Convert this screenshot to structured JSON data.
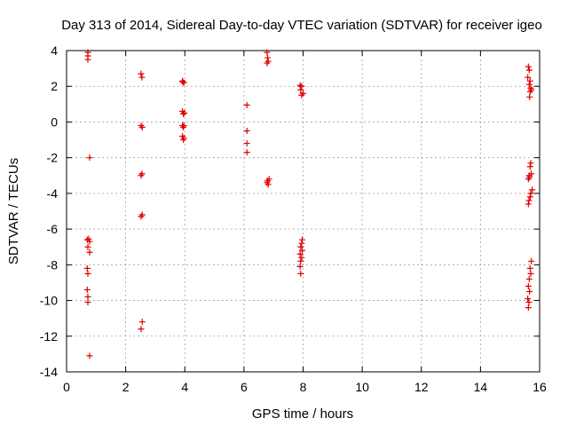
{
  "chart_data": {
    "type": "scatter",
    "title": "Day 313 of 2014, Sidereal Day-to-day VTEC variation (SDTVAR) for receiver igeo",
    "xlabel": "GPS time / hours",
    "ylabel": "SDTVAR / TECUs",
    "xlim": [
      0,
      16
    ],
    "ylim": [
      -14,
      4
    ],
    "xticks": [
      "0",
      "2",
      "4",
      "6",
      "8",
      "10",
      "12",
      "14",
      "16"
    ],
    "yticks": [
      "-14",
      "-12",
      "-10",
      "-8",
      "-6",
      "-4",
      "-2",
      "0",
      "2",
      "4"
    ],
    "grid": true,
    "marker": "plus",
    "color": "#e00000",
    "series": [
      {
        "name": "SDTVAR",
        "points": [
          [
            0.72,
            3.9
          ],
          [
            0.72,
            3.7
          ],
          [
            0.72,
            3.5
          ],
          [
            0.78,
            -2.0
          ],
          [
            0.7,
            -6.6
          ],
          [
            0.75,
            -6.55
          ],
          [
            0.78,
            -6.7
          ],
          [
            0.72,
            -7.0
          ],
          [
            0.78,
            -7.3
          ],
          [
            0.7,
            -8.2
          ],
          [
            0.72,
            -8.5
          ],
          [
            0.7,
            -9.4
          ],
          [
            0.72,
            -9.8
          ],
          [
            0.72,
            -10.1
          ],
          [
            0.78,
            -13.1
          ],
          [
            2.52,
            2.7
          ],
          [
            2.55,
            2.5
          ],
          [
            2.52,
            -0.2
          ],
          [
            2.56,
            -0.3
          ],
          [
            2.55,
            -2.9
          ],
          [
            2.52,
            -3.0
          ],
          [
            2.56,
            -5.2
          ],
          [
            2.52,
            -5.3
          ],
          [
            2.56,
            -11.2
          ],
          [
            2.52,
            -11.6
          ],
          [
            3.92,
            2.3
          ],
          [
            3.97,
            2.2
          ],
          [
            3.93,
            2.25
          ],
          [
            3.92,
            0.6
          ],
          [
            3.98,
            0.5
          ],
          [
            3.95,
            0.45
          ],
          [
            3.92,
            -0.2
          ],
          [
            3.97,
            -0.2
          ],
          [
            3.95,
            -0.3
          ],
          [
            3.92,
            -0.8
          ],
          [
            3.97,
            -0.9
          ],
          [
            3.95,
            -1.0
          ],
          [
            6.1,
            0.95
          ],
          [
            6.1,
            -0.5
          ],
          [
            6.1,
            -1.2
          ],
          [
            6.1,
            -1.7
          ],
          [
            6.78,
            3.9
          ],
          [
            6.8,
            3.6
          ],
          [
            6.82,
            3.4
          ],
          [
            6.78,
            3.3
          ],
          [
            6.85,
            -3.2
          ],
          [
            6.8,
            -3.3
          ],
          [
            6.78,
            -3.4
          ],
          [
            6.82,
            -3.5
          ],
          [
            7.9,
            2.05
          ],
          [
            7.95,
            2.0
          ],
          [
            7.92,
            1.8
          ],
          [
            8.0,
            1.6
          ],
          [
            7.95,
            1.5
          ],
          [
            7.97,
            -6.6
          ],
          [
            7.95,
            -6.8
          ],
          [
            7.92,
            -7.0
          ],
          [
            7.97,
            -7.2
          ],
          [
            7.9,
            -7.4
          ],
          [
            7.95,
            -7.6
          ],
          [
            7.92,
            -7.8
          ],
          [
            7.9,
            -8.1
          ],
          [
            7.92,
            -8.5
          ],
          [
            15.62,
            3.1
          ],
          [
            15.65,
            2.9
          ],
          [
            15.6,
            2.5
          ],
          [
            15.68,
            2.3
          ],
          [
            15.65,
            2.1
          ],
          [
            15.7,
            1.9
          ],
          [
            15.72,
            1.8
          ],
          [
            15.68,
            1.7
          ],
          [
            15.66,
            1.4
          ],
          [
            15.7,
            -2.3
          ],
          [
            15.68,
            -2.5
          ],
          [
            15.72,
            -2.9
          ],
          [
            15.65,
            -3.0
          ],
          [
            15.62,
            -3.2
          ],
          [
            15.66,
            -3.1
          ],
          [
            15.75,
            -3.8
          ],
          [
            15.7,
            -4.0
          ],
          [
            15.68,
            -4.2
          ],
          [
            15.64,
            -4.4
          ],
          [
            15.62,
            -4.6
          ],
          [
            15.72,
            -7.8
          ],
          [
            15.68,
            -8.2
          ],
          [
            15.7,
            -8.5
          ],
          [
            15.65,
            -8.8
          ],
          [
            15.62,
            -9.2
          ],
          [
            15.66,
            -9.5
          ],
          [
            15.6,
            -9.9
          ],
          [
            15.64,
            -10.1
          ],
          [
            15.62,
            -10.4
          ]
        ]
      }
    ]
  }
}
